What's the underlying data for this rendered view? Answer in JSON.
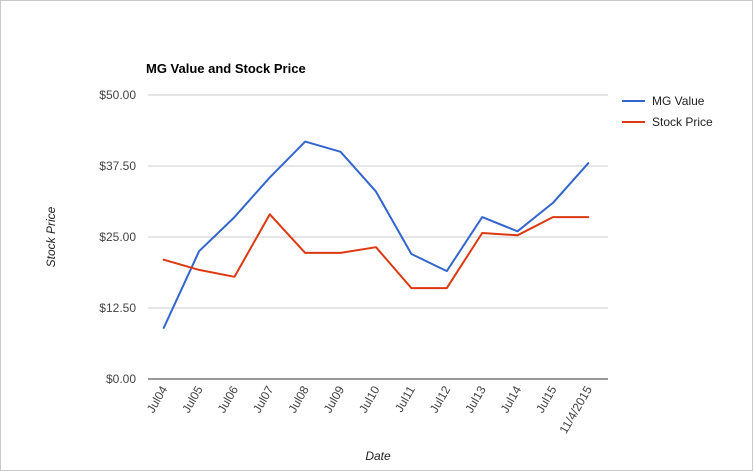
{
  "colors": {
    "mg_value": "#3366cc",
    "stock_price": "#dc3912",
    "grid": "#cccccc",
    "axis": "#333333"
  },
  "chart_data": {
    "type": "line",
    "title": "MG Value and Stock Price",
    "xlabel": "Date",
    "ylabel": "Stock Price",
    "ylim": [
      0,
      50
    ],
    "yticks": [
      "$0.00",
      "$12.50",
      "$25.00",
      "$37.50",
      "$50.00"
    ],
    "ytick_values": [
      0,
      12.5,
      25,
      37.5,
      50
    ],
    "grid": true,
    "legend_position": "right",
    "categories": [
      "Jul04",
      "Jul05",
      "Jul06",
      "Jul07",
      "Jul08",
      "Jul09",
      "Jul10",
      "Jul11",
      "Jul12",
      "Jul13",
      "Jul14",
      "Jul15",
      "11/4/2015"
    ],
    "series": [
      {
        "name": "MG Value",
        "color": "#3366cc",
        "values": [
          9.0,
          22.5,
          28.5,
          35.5,
          41.8,
          40.0,
          33.0,
          22.0,
          19.0,
          28.5,
          26.0,
          31.0,
          38.0
        ]
      },
      {
        "name": "Stock Price",
        "color": "#dc3912",
        "values": [
          21.0,
          19.2,
          18.0,
          29.0,
          22.2,
          22.2,
          23.2,
          16.0,
          16.0,
          25.7,
          25.3,
          28.5,
          28.5
        ]
      }
    ]
  }
}
